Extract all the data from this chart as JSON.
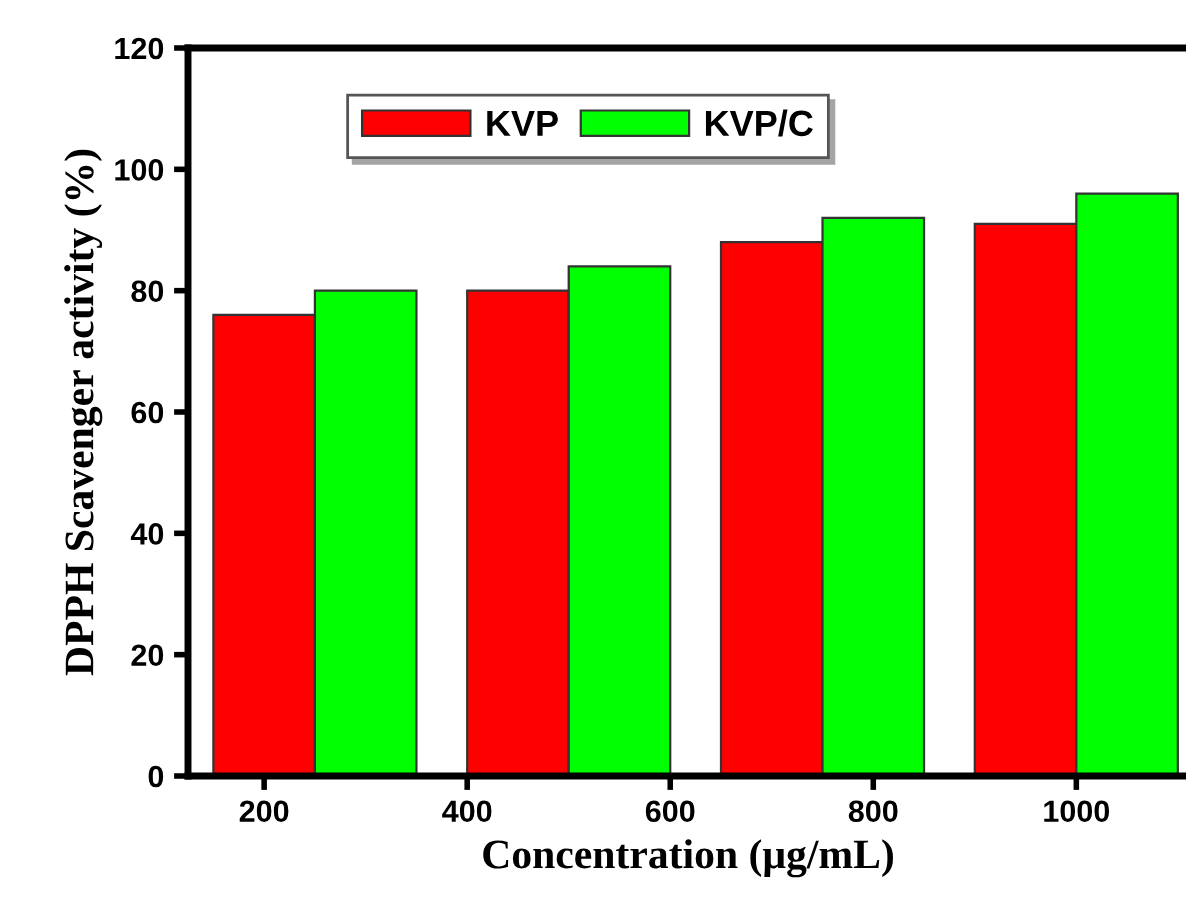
{
  "chart_data": {
    "type": "bar",
    "xlabel": "Concentration (μg/mL)",
    "ylabel": "DPPH Scavenger activity (%)",
    "series": [
      {
        "name": "KVP",
        "color": "#ff0000",
        "x": [
          200,
          450,
          700,
          950
        ],
        "values": [
          76,
          80,
          88,
          91
        ]
      },
      {
        "name": "KVP/C",
        "color": "#00ff00",
        "x": [
          300,
          550,
          800,
          1050
        ],
        "values": [
          80,
          84,
          92,
          96
        ]
      }
    ],
    "xlim": [
      125,
      1110
    ],
    "xticks": [
      200,
      400,
      600,
      800,
      1000
    ],
    "ylim": [
      0,
      120
    ],
    "yticks": [
      0,
      20,
      40,
      60,
      80,
      100,
      120
    ],
    "grid": false,
    "legend": "top"
  }
}
